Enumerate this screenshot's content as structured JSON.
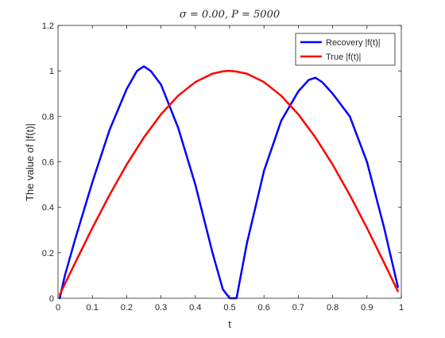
{
  "chart_data": {
    "type": "line",
    "title": "σ = 0.00,    P = 5000",
    "xlabel": "t",
    "ylabel": "The value of |f(t)|",
    "xlim": [
      0,
      1
    ],
    "ylim": [
      0,
      1.2
    ],
    "x_ticks": [
      0,
      0.1,
      0.2,
      0.3,
      0.4,
      0.5,
      0.6,
      0.7,
      0.8,
      0.9,
      1
    ],
    "x_tick_labels": [
      "0",
      "0.1",
      "0.2",
      "0.3",
      "0.4",
      "0.5",
      "0.6",
      "0.7",
      "0.8",
      "0.9",
      "1"
    ],
    "y_ticks": [
      0,
      0.2,
      0.4,
      0.6,
      0.8,
      1,
      1.2
    ],
    "y_tick_labels": [
      "0",
      "0.2",
      "0.4",
      "0.6",
      "0.8",
      "1",
      "1.2"
    ],
    "grid": false,
    "legend_position": "top-right",
    "series": [
      {
        "name": "Recovery |f(t)|",
        "color": "#0000ff",
        "x": [
          0.005,
          0.02,
          0.05,
          0.1,
          0.15,
          0.2,
          0.23,
          0.25,
          0.27,
          0.3,
          0.35,
          0.4,
          0.45,
          0.48,
          0.5,
          0.51,
          0.52,
          0.55,
          0.6,
          0.65,
          0.7,
          0.73,
          0.75,
          0.77,
          0.8,
          0.85,
          0.9,
          0.95,
          0.99
        ],
        "y": [
          0.0,
          0.1,
          0.26,
          0.51,
          0.74,
          0.92,
          1.0,
          1.02,
          1.0,
          0.94,
          0.75,
          0.5,
          0.2,
          0.04,
          0.0,
          0.0,
          0.0,
          0.24,
          0.56,
          0.78,
          0.91,
          0.96,
          0.97,
          0.95,
          0.9,
          0.8,
          0.6,
          0.31,
          0.05
        ]
      },
      {
        "name": "True |f(t)|",
        "color": "#ff0000",
        "x": [
          0.005,
          0.02,
          0.05,
          0.1,
          0.15,
          0.2,
          0.25,
          0.3,
          0.35,
          0.4,
          0.45,
          0.48,
          0.495,
          0.51,
          0.52,
          0.55,
          0.6,
          0.65,
          0.7,
          0.75,
          0.8,
          0.85,
          0.9,
          0.95,
          0.99
        ],
        "y": [
          0.016,
          0.063,
          0.156,
          0.309,
          0.454,
          0.588,
          0.707,
          0.809,
          0.891,
          0.951,
          0.988,
          0.998,
          1.0,
          0.999,
          0.997,
          0.988,
          0.951,
          0.891,
          0.809,
          0.707,
          0.588,
          0.454,
          0.309,
          0.156,
          0.031
        ],
        "y_true_formula_note": ""
      }
    ]
  }
}
